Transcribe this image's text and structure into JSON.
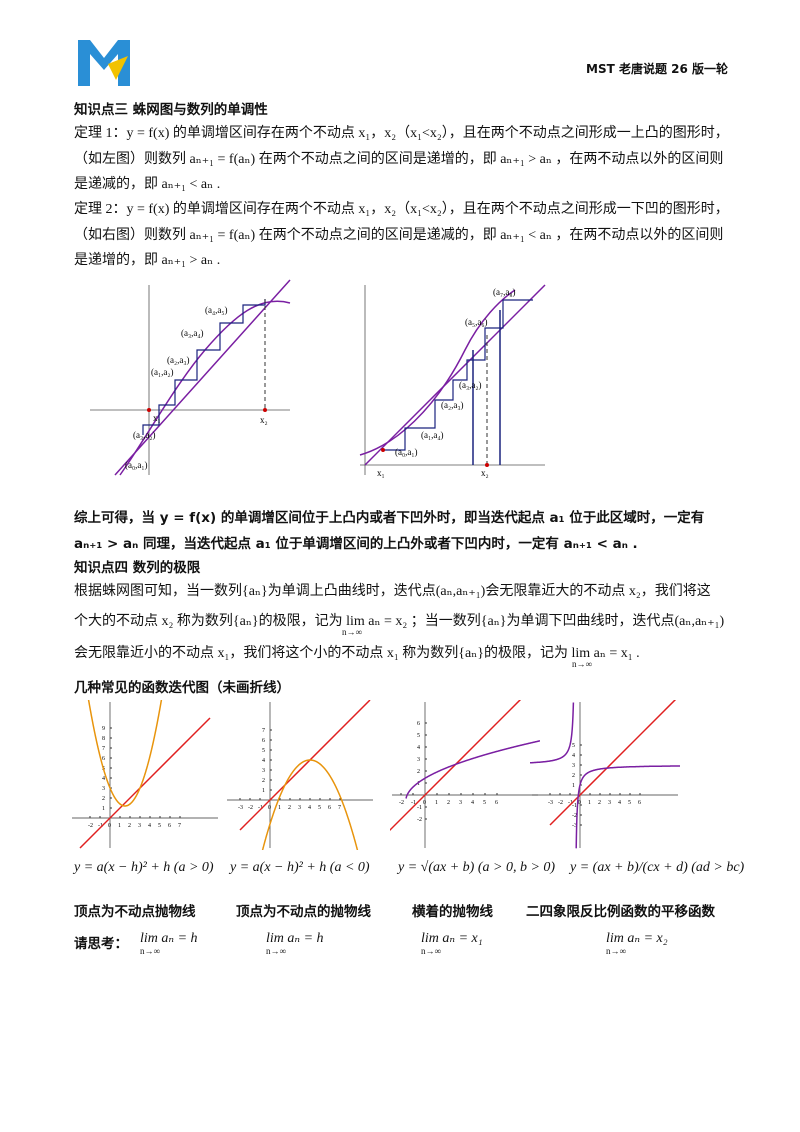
{
  "header": {
    "title": "MST 老唐说题 26 版一轮"
  },
  "section3": {
    "title": "知识点三  蛛网图与数列的单调性",
    "lines": [
      "定理 1：y = f(x) 的单调增区间存在两个不动点 x₁，x₂（x₁<x₂），且在两个不动点之间形成一上凸的图形时，",
      "（如左图）则数列 aₙ₊₁ = f(aₙ) 在两个不动点之间的区间是递增的，即 aₙ₊₁ > aₙ ，在两不动点以外的区间则",
      "是递减的，即 aₙ₊₁ < aₙ .",
      "定理 2：y = f(x) 的单调增区间存在两个不动点 x₁，x₂（x₁<x₂），且在两个不动点之间形成一下凹的图形时，",
      "（如右图）则数列 aₙ₊₁ = f(aₙ) 在两个不动点之间的区间是递减的，即 aₙ₊₁ < aₙ ，在两不动点以外的区间则",
      "是递增的，即 aₙ₊₁ > aₙ ."
    ],
    "left_figure": {
      "labels": [
        "(a₄,a₅)",
        "(a₃,a₄)",
        "(a₂,a₃)",
        "(a₁,a₂)",
        "(a₃,a₂)",
        "(a₀,a₁)",
        "x₁",
        "x₂"
      ]
    },
    "right_figure": {
      "labels": [
        "(a₇,a₈)",
        "(a₅,a₆)",
        "(a₃,a₂)",
        "(a₂,a₃)",
        "(a₁,a₄)",
        "(a₀,a₁)",
        "x₁",
        "x₂"
      ]
    },
    "summary": [
      "综上可得，当 y = f(x) 的单调增区间位于上凸内或者下凹外时，即当迭代起点 a₁ 位于此区域时，一定有",
      "aₙ₊₁ > aₙ 同理，当迭代起点 a₁ 位于单调增区间的上凸外或者下凹内时，一定有 aₙ₊₁ < aₙ ."
    ]
  },
  "section4": {
    "title": "知识点四  数列的极限",
    "lines": [
      "根据蛛网图可知，当一数列{aₙ}为单调上凸曲线时，迭代点(aₙ,aₙ₊₁)会无限靠近大的不动点 x₂，我们将这",
      "个大的不动点 x₂ 称为数列{aₙ}的极限，记为 lim aₙ = x₂ ；当一数列{aₙ}为单调下凹曲线时，迭代点(aₙ,aₙ₊₁)",
      "会无限靠近小的不动点 x₁，我们将这个小的不动点 x₁ 称为数列{aₙ}的极限，记为 lim aₙ = x₁ ."
    ],
    "limit_sub": "n→∞"
  },
  "section5": {
    "title": "几种常见的函数迭代图（未画折线）",
    "graphs": [
      {
        "formula": "y = a(x − h)² + h (a > 0)",
        "caption": "顶点为不动点抛物线",
        "limit": "lim aₙ = h",
        "xticks": [
          "-2",
          "-1",
          "0",
          "1",
          "2",
          "3",
          "4",
          "5",
          "6",
          "7"
        ],
        "yticks": [
          "1",
          "2",
          "3",
          "4",
          "5",
          "6",
          "7",
          "8",
          "9"
        ]
      },
      {
        "formula": "y = a(x − h)² + h (a < 0)",
        "caption": "顶点为不动点的抛物线",
        "limit": "lim aₙ = h",
        "xticks": [
          "-3",
          "-2",
          "-1",
          "0",
          "1",
          "2",
          "3",
          "4",
          "5",
          "6",
          "7"
        ],
        "yticks": [
          "1",
          "2",
          "3",
          "4",
          "5",
          "6",
          "7"
        ]
      },
      {
        "formula": "y = √(ax + b) (a > 0, b > 0)",
        "caption": "横着的抛物线",
        "limit": "lim aₙ = x₁",
        "xticks": [
          "-2",
          "-1",
          "0",
          "1",
          "2",
          "3",
          "4",
          "5",
          "6"
        ],
        "yticks": [
          "-2",
          "-1",
          "1",
          "2",
          "3",
          "4",
          "5",
          "6"
        ]
      },
      {
        "formula": "y = (ax + b)/(cx + d) (ad > bc)",
        "caption": "二四象限反比例函数的平移函数",
        "limit": "lim aₙ = x₂",
        "xticks": [
          "-3",
          "-2",
          "-1",
          "0",
          "1",
          "2",
          "3",
          "4",
          "5",
          "6"
        ],
        "yticks": [
          "-3",
          "-2",
          "-1",
          "1",
          "2",
          "3",
          "4",
          "5"
        ]
      }
    ],
    "think": "请思考："
  }
}
